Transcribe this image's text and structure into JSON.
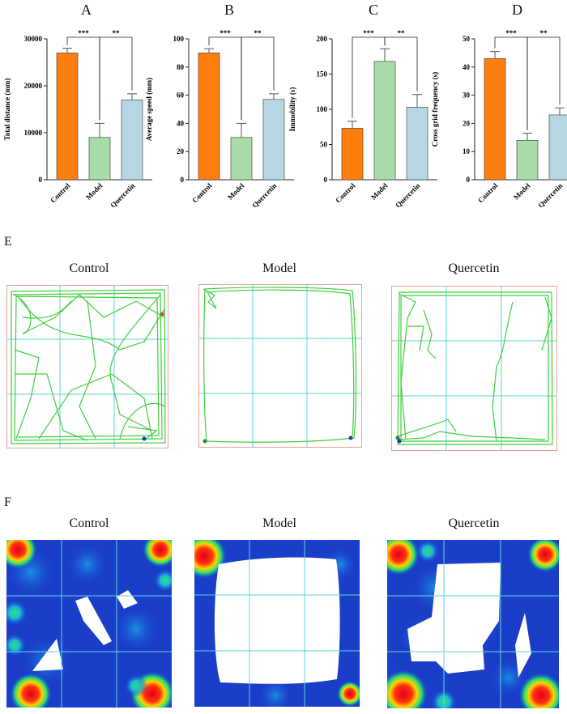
{
  "panel_letters": {
    "A": "A",
    "B": "B",
    "C": "C",
    "D": "D",
    "E": "E",
    "F": "F"
  },
  "colors": {
    "Control": "#FF7F0E",
    "Model": "#A8DCA8",
    "Quercetin": "#B5D7E3",
    "error": "#555555"
  },
  "chart_data": [
    {
      "type": "bar",
      "panel": "A",
      "categories": [
        "Control",
        "Model",
        "Quercetin"
      ],
      "values": [
        27000,
        9000,
        17000
      ],
      "errors": [
        1000,
        3000,
        1300
      ],
      "ylabel": "Total distance (mm)",
      "ylim": [
        0,
        30000
      ],
      "yticks": [
        0,
        10000,
        20000,
        30000
      ],
      "significance": [
        {
          "from": 0,
          "to": 1,
          "label": "***"
        },
        {
          "from": 1,
          "to": 2,
          "label": "**"
        }
      ]
    },
    {
      "type": "bar",
      "panel": "B",
      "categories": [
        "Control",
        "Model",
        "Quercetin"
      ],
      "values": [
        90,
        30,
        57
      ],
      "errors": [
        3,
        10,
        4
      ],
      "ylabel": "Average speed (mm)",
      "ylim": [
        0,
        100
      ],
      "yticks": [
        0,
        20,
        40,
        60,
        80,
        100
      ],
      "significance": [
        {
          "from": 0,
          "to": 1,
          "label": "***"
        },
        {
          "from": 1,
          "to": 2,
          "label": "**"
        }
      ]
    },
    {
      "type": "bar",
      "panel": "C",
      "categories": [
        "Control",
        "Model",
        "Quercetin"
      ],
      "values": [
        73,
        168,
        103
      ],
      "errors": [
        10,
        18,
        18
      ],
      "ylabel": "Immobility (s)",
      "ylim": [
        0,
        200
      ],
      "yticks": [
        0,
        50,
        100,
        150,
        200
      ],
      "significance": [
        {
          "from": 0,
          "to": 1,
          "label": "***"
        },
        {
          "from": 1,
          "to": 2,
          "label": "**"
        }
      ]
    },
    {
      "type": "bar",
      "panel": "D",
      "categories": [
        "Control",
        "Model",
        "Quercetin"
      ],
      "values": [
        43,
        14,
        23
      ],
      "errors": [
        2.5,
        2.5,
        2.5
      ],
      "ylabel": "Cross grid frequency (s)",
      "ylim": [
        0,
        50
      ],
      "yticks": [
        0,
        10,
        20,
        30,
        40,
        50
      ],
      "significance": [
        {
          "from": 0,
          "to": 1,
          "label": "***"
        },
        {
          "from": 1,
          "to": 2,
          "label": "**"
        }
      ]
    }
  ],
  "tracks": {
    "titles": [
      "Control",
      "Model",
      "Quercetin"
    ]
  },
  "heatmaps": {
    "titles": [
      "Control",
      "Model",
      "Quercetin"
    ]
  }
}
